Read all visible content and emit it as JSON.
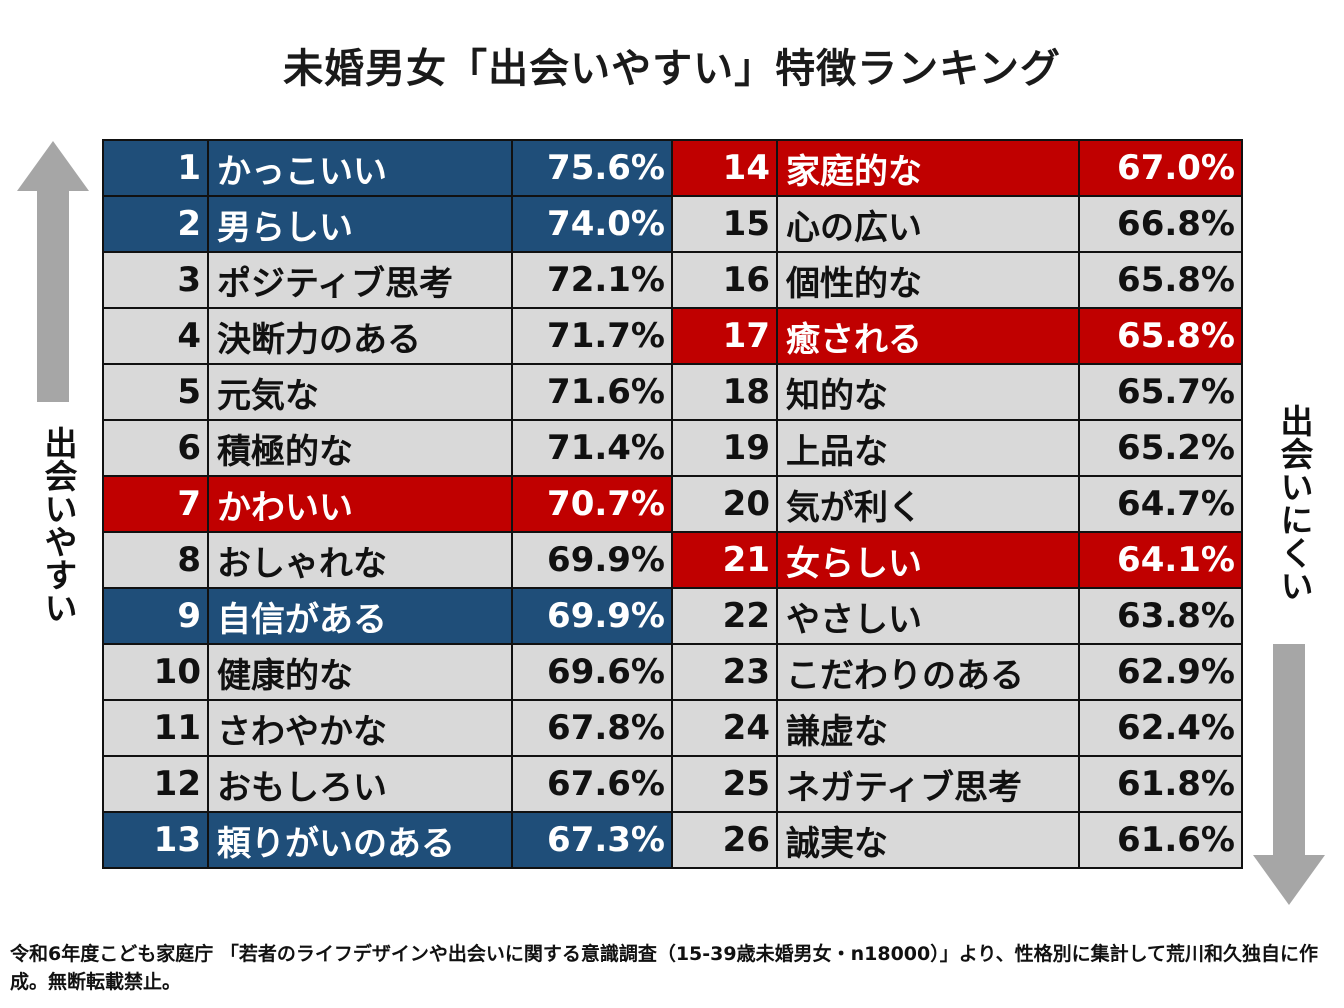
{
  "title": "未婚男女「出会いやすい」特徴ランキング",
  "side_labels": {
    "left": "出会いやすい",
    "right": "出会いにくい"
  },
  "colors": {
    "blue_highlight": "#1f4e79",
    "red_highlight": "#c00000",
    "default_row": "#d9d9d9",
    "arrow": "#a6a6a6"
  },
  "chart_data": {
    "type": "table",
    "columns": [
      "rank",
      "trait",
      "percent"
    ],
    "rows": [
      {
        "rank": "1",
        "label": "かっこいい",
        "value": "75.6%",
        "highlight": "blue"
      },
      {
        "rank": "2",
        "label": "男らしい",
        "value": "74.0%",
        "highlight": "blue"
      },
      {
        "rank": "3",
        "label": "ポジティブ思考",
        "value": "72.1%",
        "highlight": "none"
      },
      {
        "rank": "4",
        "label": "決断力のある",
        "value": "71.7%",
        "highlight": "none"
      },
      {
        "rank": "5",
        "label": "元気な",
        "value": "71.6%",
        "highlight": "none"
      },
      {
        "rank": "6",
        "label": "積極的な",
        "value": "71.4%",
        "highlight": "none"
      },
      {
        "rank": "7",
        "label": "かわいい",
        "value": "70.7%",
        "highlight": "red"
      },
      {
        "rank": "8",
        "label": "おしゃれな",
        "value": "69.9%",
        "highlight": "none"
      },
      {
        "rank": "9",
        "label": "自信がある",
        "value": "69.9%",
        "highlight": "blue"
      },
      {
        "rank": "10",
        "label": "健康的な",
        "value": "69.6%",
        "highlight": "none"
      },
      {
        "rank": "11",
        "label": "さわやかな",
        "value": "67.8%",
        "highlight": "none"
      },
      {
        "rank": "12",
        "label": "おもしろい",
        "value": "67.6%",
        "highlight": "none"
      },
      {
        "rank": "13",
        "label": "頼りがいのある",
        "value": "67.3%",
        "highlight": "blue"
      },
      {
        "rank": "14",
        "label": "家庭的な",
        "value": "67.0%",
        "highlight": "red"
      },
      {
        "rank": "15",
        "label": "心の広い",
        "value": "66.8%",
        "highlight": "none"
      },
      {
        "rank": "16",
        "label": "個性的な",
        "value": "65.8%",
        "highlight": "none"
      },
      {
        "rank": "17",
        "label": "癒される",
        "value": "65.8%",
        "highlight": "red"
      },
      {
        "rank": "18",
        "label": "知的な",
        "value": "65.7%",
        "highlight": "none"
      },
      {
        "rank": "19",
        "label": "上品な",
        "value": "65.2%",
        "highlight": "none"
      },
      {
        "rank": "20",
        "label": "気が利く",
        "value": "64.7%",
        "highlight": "none"
      },
      {
        "rank": "21",
        "label": "女らしい",
        "value": "64.1%",
        "highlight": "red"
      },
      {
        "rank": "22",
        "label": "やさしい",
        "value": "63.8%",
        "highlight": "none"
      },
      {
        "rank": "23",
        "label": "こだわりのある",
        "value": "62.9%",
        "highlight": "none"
      },
      {
        "rank": "24",
        "label": "謙虚な",
        "value": "62.4%",
        "highlight": "none"
      },
      {
        "rank": "25",
        "label": "ネガティブ思考",
        "value": "61.8%",
        "highlight": "none"
      },
      {
        "rank": "26",
        "label": "誠実な",
        "value": "61.6%",
        "highlight": "none"
      }
    ]
  },
  "footnote": "令和6年度こども家庭庁 「若者のライフデザインや出会いに関する意識調査（15-39歳未婚男女・n18000）」より、性格別に集計して荒川和久独自に作成。無断転載禁止。"
}
